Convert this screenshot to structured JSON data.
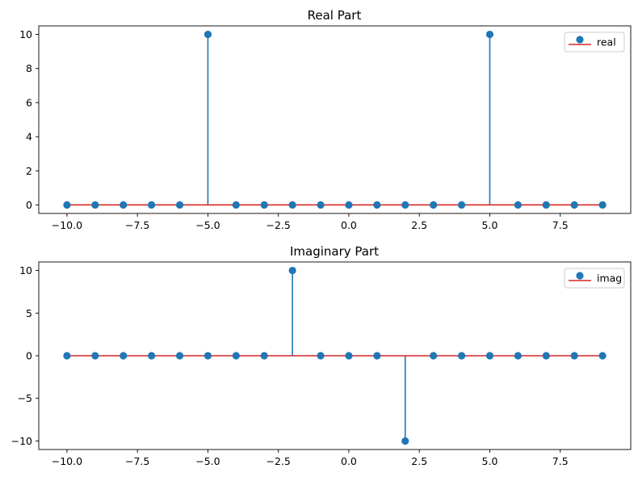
{
  "chart_data": [
    {
      "type": "stem",
      "title": "Real Part",
      "xlabel": "",
      "ylabel": "",
      "xlim": [
        -11,
        10
      ],
      "ylim": [
        -0.5,
        10.5
      ],
      "xticks": [
        -10.0,
        -7.5,
        -5.0,
        -2.5,
        0.0,
        2.5,
        5.0,
        7.5
      ],
      "xtick_labels": [
        "−10.0",
        "−7.5",
        "−5.0",
        "−2.5",
        "0.0",
        "2.5",
        "5.0",
        "7.5"
      ],
      "yticks": [
        0,
        2,
        4,
        6,
        8,
        10
      ],
      "ytick_labels": [
        "0",
        "2",
        "4",
        "6",
        "8",
        "10"
      ],
      "legend": {
        "label": "real",
        "position": "upper right"
      },
      "x": [
        -10,
        -9,
        -8,
        -7,
        -6,
        -5,
        -4,
        -3,
        -2,
        -1,
        0,
        1,
        2,
        3,
        4,
        5,
        6,
        7,
        8,
        9
      ],
      "y": [
        0,
        0,
        0,
        0,
        0,
        10,
        0,
        0,
        0,
        0,
        0,
        0,
        0,
        0,
        0,
        10,
        0,
        0,
        0,
        0
      ],
      "colors": {
        "stem": "#1f77b4",
        "baseline": "#d62728"
      }
    },
    {
      "type": "stem",
      "title": "Imaginary Part",
      "xlabel": "",
      "ylabel": "",
      "xlim": [
        -11,
        10
      ],
      "ylim": [
        -11,
        11
      ],
      "xticks": [
        -10.0,
        -7.5,
        -5.0,
        -2.5,
        0.0,
        2.5,
        5.0,
        7.5
      ],
      "xtick_labels": [
        "−10.0",
        "−7.5",
        "−5.0",
        "−2.5",
        "0.0",
        "2.5",
        "5.0",
        "7.5"
      ],
      "yticks": [
        -10,
        -5,
        0,
        5,
        10
      ],
      "ytick_labels": [
        "−10",
        "−5",
        "0",
        "5",
        "10"
      ],
      "legend": {
        "label": "imag",
        "position": "upper right"
      },
      "x": [
        -10,
        -9,
        -8,
        -7,
        -6,
        -5,
        -4,
        -3,
        -2,
        -1,
        0,
        1,
        2,
        3,
        4,
        5,
        6,
        7,
        8,
        9
      ],
      "y": [
        0,
        0,
        0,
        0,
        0,
        0,
        0,
        0,
        10,
        0,
        0,
        0,
        -10,
        0,
        0,
        0,
        0,
        0,
        0,
        0
      ],
      "colors": {
        "stem": "#1f77b4",
        "baseline": "#d62728"
      }
    }
  ]
}
